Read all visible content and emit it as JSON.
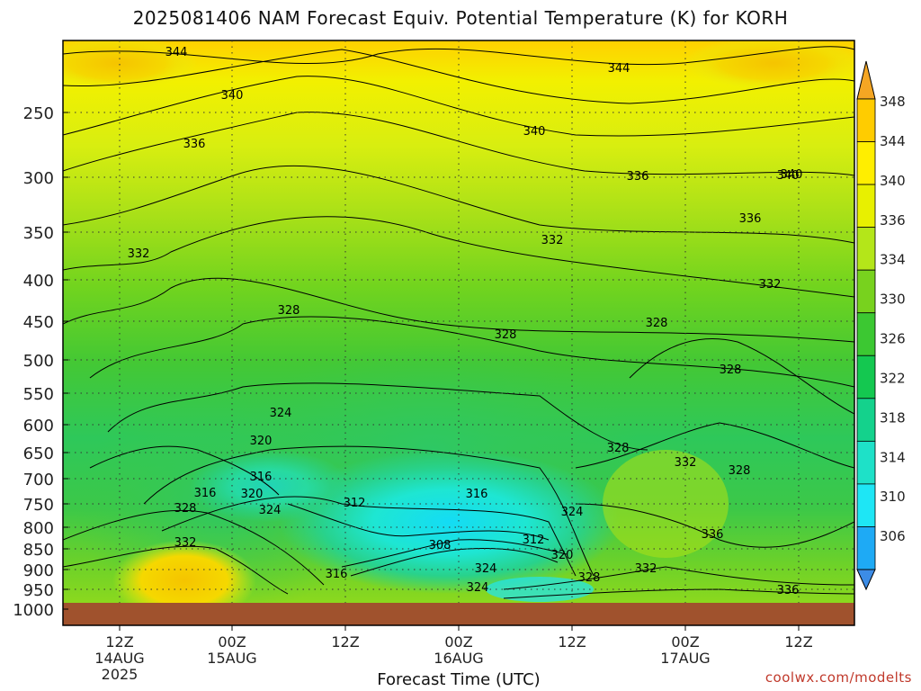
{
  "title": "2025081406 NAM Forecast Equiv. Potential Temperature (K) for KORH",
  "credit": "coolwx.com/modelts",
  "chart_data": {
    "type": "heatmap",
    "title": "2025081406 NAM Forecast Equiv. Potential Temperature (K) for KORH",
    "xlabel": "Forecast Time (UTC)",
    "ylabel": "",
    "x_ticks": [
      {
        "top": "12Z",
        "mid": "14AUG",
        "bot": "2025"
      },
      {
        "top": "00Z",
        "mid": "15AUG",
        "bot": ""
      },
      {
        "top": "12Z",
        "mid": "",
        "bot": ""
      },
      {
        "top": "00Z",
        "mid": "16AUG",
        "bot": ""
      },
      {
        "top": "12Z",
        "mid": "",
        "bot": ""
      },
      {
        "top": "00Z",
        "mid": "17AUG",
        "bot": ""
      },
      {
        "top": "12Z",
        "mid": "",
        "bot": ""
      }
    ],
    "y_ticks": [
      "250",
      "300",
      "350",
      "400",
      "450",
      "500",
      "550",
      "600",
      "650",
      "700",
      "750",
      "800",
      "850",
      "900",
      "950",
      "1000"
    ],
    "y_scale": "log-pressure (hPa)",
    "colorbar_ticks": [
      "348",
      "344",
      "340",
      "336",
      "334",
      "330",
      "326",
      "322",
      "318",
      "314",
      "310",
      "306"
    ],
    "colorbar_colors": [
      "#f5a623",
      "#ffcc00",
      "#ffee00",
      "#e8f000",
      "#b4e619",
      "#78d21e",
      "#3cc832",
      "#14c850",
      "#14d28c",
      "#1ee1c8",
      "#1ee6f5",
      "#1eaaf5",
      "#3c8ce6"
    ],
    "surface_color": "#a0522d",
    "contour_labels": [
      "344",
      "344",
      "340",
      "340",
      "340",
      "336",
      "336",
      "340",
      "336",
      "332",
      "332",
      "332",
      "328",
      "328",
      "328",
      "328",
      "324",
      "320",
      "316",
      "316",
      "320",
      "312",
      "316",
      "328",
      "324",
      "332",
      "324",
      "308",
      "312",
      "320",
      "328",
      "332",
      "332",
      "328",
      "336",
      "316",
      "324",
      "328",
      "332",
      "324",
      "336"
    ]
  }
}
